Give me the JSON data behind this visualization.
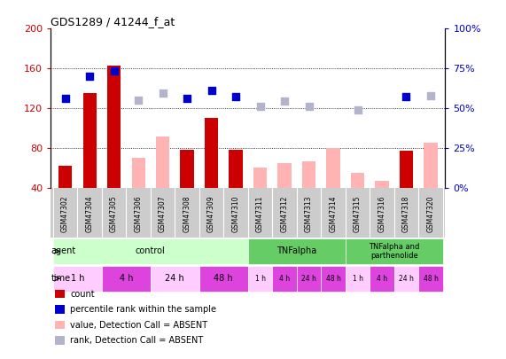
{
  "title": "GDS1289 / 41244_f_at",
  "samples": [
    "GSM47302",
    "GSM47304",
    "GSM47305",
    "GSM47306",
    "GSM47307",
    "GSM47308",
    "GSM47309",
    "GSM47310",
    "GSM47311",
    "GSM47312",
    "GSM47313",
    "GSM47314",
    "GSM47315",
    "GSM47316",
    "GSM47318",
    "GSM47320"
  ],
  "count_values": [
    62,
    135,
    163,
    null,
    null,
    78,
    110,
    78,
    null,
    null,
    null,
    null,
    null,
    null,
    77,
    null
  ],
  "count_absent": [
    null,
    null,
    null,
    70,
    92,
    null,
    null,
    null,
    60,
    65,
    67,
    80,
    55,
    47,
    null,
    85
  ],
  "percentile_values": [
    130,
    152,
    158,
    null,
    null,
    130,
    138,
    132,
    null,
    null,
    null,
    null,
    null,
    null,
    132,
    null
  ],
  "percentile_absent": [
    null,
    null,
    null,
    128,
    135,
    null,
    null,
    null,
    122,
    127,
    122,
    null,
    118,
    null,
    null,
    133
  ],
  "count_color": "#cc0000",
  "count_absent_color": "#ffb3b3",
  "percentile_color": "#0000cc",
  "percentile_absent_color": "#b3b3cc",
  "ylim_left": [
    40,
    200
  ],
  "ylim_right": [
    0,
    100
  ],
  "yticks_left": [
    40,
    80,
    120,
    160,
    200
  ],
  "yticks_right": [
    0,
    25,
    50,
    75,
    100
  ],
  "ytick_labels_left": [
    "40",
    "80",
    "120",
    "160",
    "200"
  ],
  "ytick_labels_right": [
    "0%",
    "25%",
    "50%",
    "75%",
    "100%"
  ],
  "bar_width": 0.55,
  "dot_size": 35,
  "background_color": "#ffffff",
  "grid_color": "#000000",
  "control_agent_color": "#ccffcc",
  "tnf_agent_color": "#66cc66",
  "time_light_color": "#ffccff",
  "time_dark_color": "#dd44dd",
  "xtick_bg": "#cccccc"
}
